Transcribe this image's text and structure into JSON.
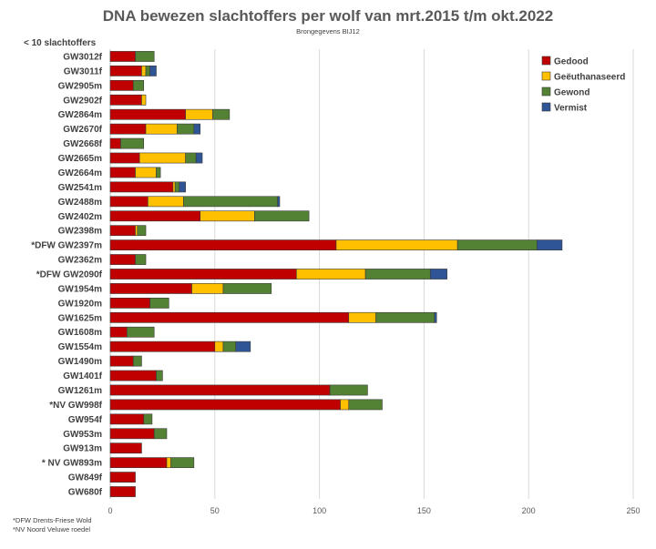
{
  "chart_data": {
    "type": "bar",
    "orientation": "horizontal",
    "stacked": true,
    "title": "DNA bewezen slachtoffers per wolf van mrt.2015 t/m okt.2022",
    "subtitle": "Brongegevens BIJ12",
    "note": "< 10 slachtoffers",
    "footnotes": [
      "*DFW Drents-Friese Wold",
      "*NV Noord Veluwe roedel"
    ],
    "xlim": [
      0,
      250
    ],
    "xticks": [
      0,
      50,
      100,
      150,
      200,
      250
    ],
    "grid": true,
    "legend_position": "top-right",
    "categories": [
      "GW3012f",
      "GW3011f",
      "GW2905m",
      "GW2902f",
      "GW2864m",
      "GW2670f",
      "GW2668f",
      "GW2665m",
      "GW2664m",
      "GW2541m",
      "GW2488m",
      "GW2402m",
      "GW2398m",
      "*DFW GW2397m",
      "GW2362m",
      "*DFW GW2090f",
      "GW1954m",
      "GW1920m",
      "GW1625m",
      "GW1608m",
      "GW1554m",
      "GW1490m",
      "GW1401f",
      "GW1261m",
      "*NV GW998f",
      "GW954f",
      "GW953m",
      "GW913m",
      "* NV GW893m",
      "GW849f",
      "GW680f"
    ],
    "series": [
      {
        "name": "Gedood",
        "color": "#c00000",
        "values": [
          12,
          15,
          11,
          15,
          36,
          17,
          5,
          14,
          12,
          30,
          18,
          43,
          12,
          108,
          12,
          89,
          39,
          19,
          114,
          8,
          50,
          11,
          22,
          105,
          110,
          16,
          21,
          15,
          27,
          12,
          12
        ]
      },
      {
        "name": "Geëuthanaseerd",
        "color": "#ffc000",
        "values": [
          0,
          2,
          0,
          2,
          13,
          15,
          0,
          22,
          10,
          1,
          17,
          26,
          1,
          58,
          0,
          33,
          15,
          0,
          13,
          0,
          4,
          0,
          0,
          0,
          4,
          0,
          0,
          0,
          2,
          0,
          0
        ]
      },
      {
        "name": "Gewond",
        "color": "#548235",
        "values": [
          9,
          2,
          5,
          0,
          8,
          8,
          11,
          5,
          2,
          2,
          45,
          26,
          4,
          38,
          5,
          31,
          23,
          9,
          28,
          13,
          6,
          4,
          3,
          18,
          16,
          4,
          6,
          0,
          11,
          0,
          0
        ]
      },
      {
        "name": "Vermist",
        "color": "#2f5597",
        "values": [
          0,
          3,
          0,
          0,
          0,
          3,
          0,
          3,
          0,
          3,
          1,
          0,
          0,
          12,
          0,
          8,
          0,
          0,
          1,
          0,
          7,
          0,
          0,
          0,
          0,
          0,
          0,
          0,
          0,
          0,
          0
        ]
      }
    ]
  }
}
